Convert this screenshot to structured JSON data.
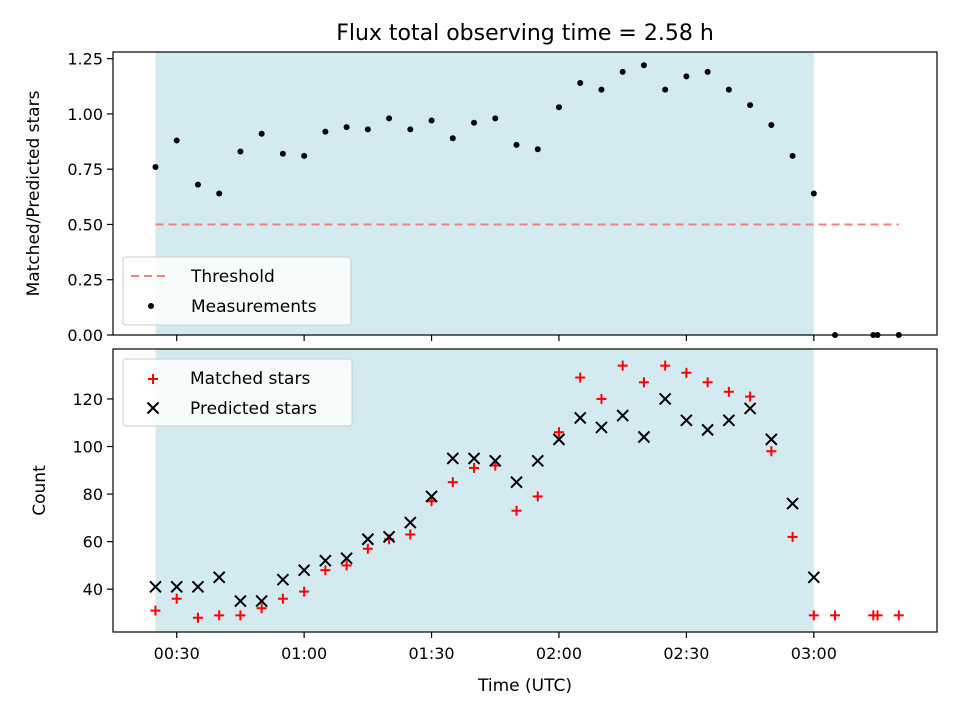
{
  "chart_data": [
    {
      "type": "scatter",
      "title": "Flux total observing time = 2.58 h",
      "ylabel": "Matched/Predicted stars",
      "xlabel": "",
      "ylim": [
        0,
        1.28
      ],
      "yticks": [
        0,
        0.25,
        0.5,
        0.75,
        1.0,
        1.25
      ],
      "ytick_labels": [
        "0.00",
        "0.25",
        "0.50",
        "0.75",
        "1.00",
        "1.25"
      ],
      "observing_window": [
        "00:25",
        "03:00"
      ],
      "observing_window_color": "#d3eaf0",
      "threshold": {
        "label": "Threshold",
        "y": 0.5,
        "x_range": [
          "00:25",
          "03:20"
        ],
        "color": "#f08080"
      },
      "series": [
        {
          "name": "Measurements",
          "color": "#000000",
          "x": [
            "00:25",
            "00:30",
            "00:35",
            "00:40",
            "00:45",
            "00:50",
            "00:55",
            "01:00",
            "01:05",
            "01:10",
            "01:15",
            "01:20",
            "01:25",
            "01:30",
            "01:35",
            "01:40",
            "01:45",
            "01:50",
            "01:55",
            "02:00",
            "02:05",
            "02:10",
            "02:15",
            "02:20",
            "02:25",
            "02:30",
            "02:35",
            "02:40",
            "02:45",
            "02:50",
            "02:55",
            "03:00",
            "03:05",
            "03:14",
            "03:15",
            "03:20"
          ],
          "values": [
            0.76,
            0.88,
            0.68,
            0.64,
            0.83,
            0.91,
            0.82,
            0.81,
            0.92,
            0.94,
            0.93,
            0.98,
            0.93,
            0.97,
            0.89,
            0.96,
            0.98,
            0.86,
            0.84,
            1.03,
            1.14,
            1.11,
            1.19,
            1.22,
            1.11,
            1.17,
            1.19,
            1.11,
            1.04,
            0.95,
            0.81,
            0.64,
            0.0,
            0.0,
            0.0,
            0.0
          ]
        }
      ],
      "legend_position": "lower-left"
    },
    {
      "type": "scatter",
      "title": "",
      "ylabel": "Count",
      "xlabel": "Time (UTC)",
      "ylim": [
        22,
        141
      ],
      "yticks": [
        40,
        60,
        80,
        100,
        120
      ],
      "xlim": [
        "00:15",
        "03:29"
      ],
      "xticks": [
        "00:30",
        "01:00",
        "01:30",
        "02:00",
        "02:30",
        "03:00"
      ],
      "observing_window": [
        "00:25",
        "03:00"
      ],
      "observing_window_color": "#d3eaf0",
      "series": [
        {
          "name": "Matched stars",
          "marker": "plus",
          "color": "#ff0000",
          "x": [
            "00:25",
            "00:30",
            "00:35",
            "00:40",
            "00:45",
            "00:50",
            "00:55",
            "01:00",
            "01:05",
            "01:10",
            "01:15",
            "01:20",
            "01:25",
            "01:30",
            "01:35",
            "01:40",
            "01:45",
            "01:50",
            "01:55",
            "02:00",
            "02:05",
            "02:10",
            "02:15",
            "02:20",
            "02:25",
            "02:30",
            "02:35",
            "02:40",
            "02:45",
            "02:50",
            "02:55",
            "03:00",
            "03:05",
            "03:14",
            "03:15",
            "03:20"
          ],
          "values": [
            31,
            36,
            28,
            29,
            29,
            32,
            36,
            39,
            48,
            50,
            57,
            61,
            63,
            77,
            85,
            91,
            92,
            73,
            79,
            106,
            129,
            120,
            134,
            127,
            134,
            131,
            127,
            123,
            121,
            98,
            62,
            29,
            29,
            29,
            29,
            29
          ]
        },
        {
          "name": "Predicted stars",
          "marker": "x",
          "color": "#000000",
          "x": [
            "00:25",
            "00:30",
            "00:35",
            "00:40",
            "00:45",
            "00:50",
            "00:55",
            "01:00",
            "01:05",
            "01:10",
            "01:15",
            "01:20",
            "01:25",
            "01:30",
            "01:35",
            "01:40",
            "01:45",
            "01:50",
            "01:55",
            "02:00",
            "02:05",
            "02:10",
            "02:15",
            "02:20",
            "02:25",
            "02:30",
            "02:35",
            "02:40",
            "02:45",
            "02:50",
            "02:55",
            "03:00"
          ],
          "values": [
            41,
            41,
            41,
            45,
            35,
            35,
            44,
            48,
            52,
            53,
            61,
            62,
            68,
            79,
            95,
            95,
            94,
            85,
            94,
            103,
            112,
            108,
            113,
            104,
            120,
            111,
            107,
            111,
            116,
            103,
            76,
            45
          ]
        }
      ],
      "legend_position": "upper-left"
    }
  ]
}
